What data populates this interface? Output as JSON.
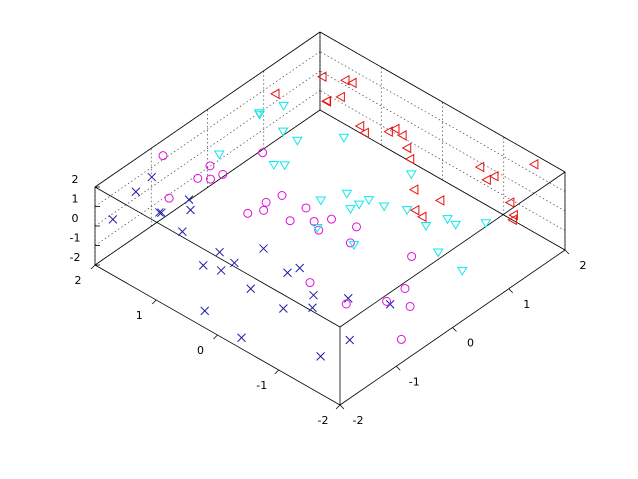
{
  "chart_data": {
    "type": "scatter3d",
    "xlim": [
      -2,
      2
    ],
    "ylim": [
      -2,
      2
    ],
    "zlim": [
      -2,
      2
    ],
    "xticks": [
      -2,
      -1,
      0,
      1,
      2
    ],
    "yticks": [
      -2,
      -1,
      0,
      1,
      2
    ],
    "zticks": [
      -2,
      -1,
      0,
      1,
      2
    ],
    "grid": true,
    "series": [
      {
        "color": "#1c1caa",
        "marker": "x",
        "x": [
          -1.9,
          -1.2,
          -1.6,
          -1.4,
          -1.8,
          -1.1,
          -1.5,
          -1.3,
          -1.7,
          -1.0,
          -1.9,
          -1.4,
          -1.6,
          -1.2,
          -1.8,
          -1.3,
          -1.5,
          -1.1,
          -1.7,
          -1.4,
          -1.9,
          -1.6,
          -1.2,
          -1.5,
          -1.3
        ],
        "y": [
          1.8,
          1.2,
          0.6,
          -0.2,
          -1.5,
          1.9,
          0.9,
          0.1,
          -0.8,
          -1.9,
          0.3,
          1.5,
          -1.2,
          0.7,
          1.1,
          -0.5,
          -1.7,
          1.4,
          0.0,
          -1.0,
          -0.3,
          1.7,
          -1.4,
          0.4,
          -0.7
        ],
        "z": [
          0.5,
          1.2,
          -0.3,
          1.6,
          -0.8,
          0.9,
          1.8,
          -1.2,
          0.2,
          1.0,
          -1.5,
          0.4,
          1.4,
          -0.6,
          1.9,
          0.7,
          -0.2,
          -1.0,
          1.1,
          0.0,
          -1.8,
          1.5,
          0.8,
          -0.4,
          1.3
        ]
      },
      {
        "color": "#e010e0",
        "marker": "o",
        "x": [
          -0.9,
          -0.2,
          -0.6,
          -0.4,
          -0.8,
          -0.1,
          -0.5,
          -0.3,
          -0.7,
          0.0,
          -0.9,
          -0.4,
          -0.6,
          -0.2,
          -0.8,
          -0.3,
          -0.5,
          -0.1,
          -0.7,
          -0.4,
          -0.9,
          -0.6,
          -0.2,
          -0.5,
          -0.3
        ],
        "y": [
          1.9,
          0.9,
          0.1,
          -0.8,
          -1.9,
          0.3,
          1.5,
          -1.2,
          0.7,
          1.1,
          -0.5,
          -1.7,
          1.4,
          0.0,
          -1.0,
          -0.3,
          1.7,
          -1.4,
          0.4,
          -0.7,
          1.8,
          1.2,
          0.6,
          -0.2,
          -1.5
        ],
        "z": [
          1.6,
          -0.8,
          0.9,
          1.8,
          -1.2,
          0.2,
          1.0,
          -1.5,
          0.4,
          1.4,
          -0.6,
          1.9,
          0.7,
          -0.2,
          -1.0,
          1.1,
          0.0,
          -1.8,
          1.5,
          0.8,
          -0.4,
          1.3,
          0.5,
          1.2,
          -0.3
        ]
      },
      {
        "color": "#10e8e8",
        "marker": "v",
        "x": [
          0.1,
          0.8,
          0.4,
          0.6,
          0.2,
          0.9,
          0.5,
          0.7,
          0.3,
          1.0,
          0.1,
          0.6,
          0.4,
          0.8,
          0.2,
          0.7,
          0.5,
          0.9,
          0.3,
          0.6,
          0.1,
          0.4,
          0.8,
          0.5,
          0.7
        ],
        "y": [
          0.3,
          1.5,
          -1.2,
          0.7,
          1.1,
          -0.5,
          -1.7,
          1.4,
          0.0,
          -1.0,
          -0.3,
          1.7,
          -1.4,
          0.4,
          -0.7,
          1.8,
          1.2,
          0.6,
          -0.2,
          -1.5,
          1.9,
          0.9,
          0.1,
          -0.8,
          -1.9
        ],
        "z": [
          -1.2,
          0.2,
          1.0,
          -1.5,
          0.4,
          1.4,
          -0.6,
          1.9,
          0.7,
          -0.2,
          -1.0,
          1.1,
          0.0,
          -1.8,
          1.5,
          0.8,
          -0.4,
          1.3,
          0.5,
          1.2,
          -0.3,
          1.6,
          -0.8,
          0.9,
          1.8
        ]
      },
      {
        "color": "#e81010",
        "marker": "<",
        "x": [
          1.1,
          1.8,
          1.4,
          1.6,
          1.2,
          1.9,
          1.5,
          1.7,
          1.3,
          2.0,
          1.1,
          1.6,
          1.4,
          1.8,
          1.2,
          1.7,
          1.5,
          1.9,
          1.3,
          1.6,
          1.1,
          1.4,
          1.8,
          1.5,
          1.7
        ],
        "y": [
          -0.3,
          1.7,
          -1.4,
          0.4,
          -0.7,
          1.8,
          1.2,
          0.6,
          -0.2,
          -1.5,
          1.9,
          0.9,
          0.1,
          -0.8,
          -1.9,
          0.3,
          1.5,
          -1.2,
          0.7,
          1.1,
          -0.5,
          -1.7,
          1.4,
          0.0,
          -1.0
        ],
        "z": [
          1.4,
          -0.6,
          1.9,
          0.7,
          -0.2,
          -1.0,
          1.1,
          0.0,
          -1.8,
          1.5,
          0.8,
          -0.4,
          1.3,
          0.5,
          1.2,
          -0.3,
          1.6,
          -0.8,
          0.9,
          1.8,
          -1.2,
          0.2,
          1.0,
          -1.5,
          0.4
        ]
      }
    ]
  }
}
